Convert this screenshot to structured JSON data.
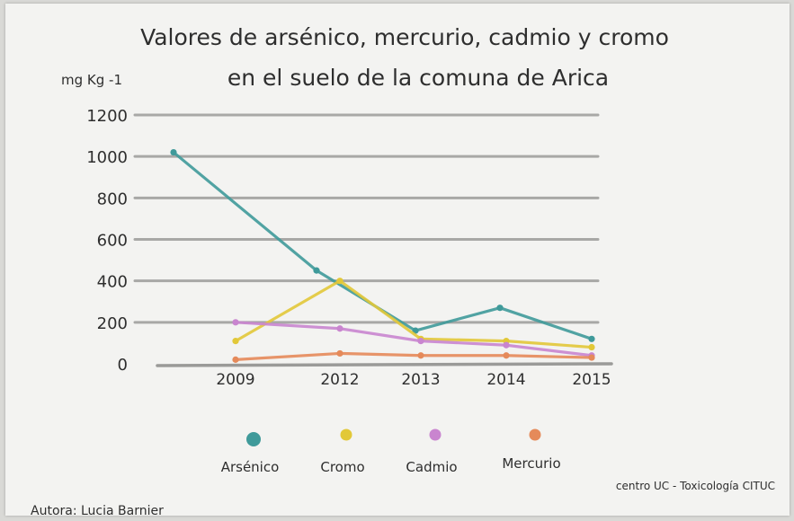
{
  "chart_data": {
    "type": "line",
    "title": "Valores de arsénico, mercurio, cadmio y cromo",
    "subtitle": "en el suelo de la comuna de Arica",
    "ylabel": "mg Kg -1",
    "xlabel": "",
    "categories": [
      "2009",
      "2012",
      "2013",
      "2014",
      "2015"
    ],
    "y_ticks": [
      "0",
      "200",
      "400",
      "600",
      "800",
      "1000",
      "1200"
    ],
    "ylim": [
      0,
      1200
    ],
    "grid": true,
    "legend_position": "bottom",
    "series": [
      {
        "name": "Arsénico",
        "color": "#3f9a9a",
        "values": [
          1020,
          450,
          160,
          270,
          120
        ]
      },
      {
        "name": "Cromo",
        "color": "#e2c838",
        "values": [
          110,
          400,
          120,
          110,
          80
        ]
      },
      {
        "name": "Cadmio",
        "color": "#c985cf",
        "values": [
          200,
          170,
          110,
          90,
          40
        ]
      },
      {
        "name": "Mercurio",
        "color": "#e58a5a",
        "values": [
          20,
          50,
          40,
          40,
          30
        ]
      }
    ]
  },
  "footer": {
    "author": "Autora: Lucia Barnier",
    "source": "centro UC - Toxicología CITUC"
  }
}
